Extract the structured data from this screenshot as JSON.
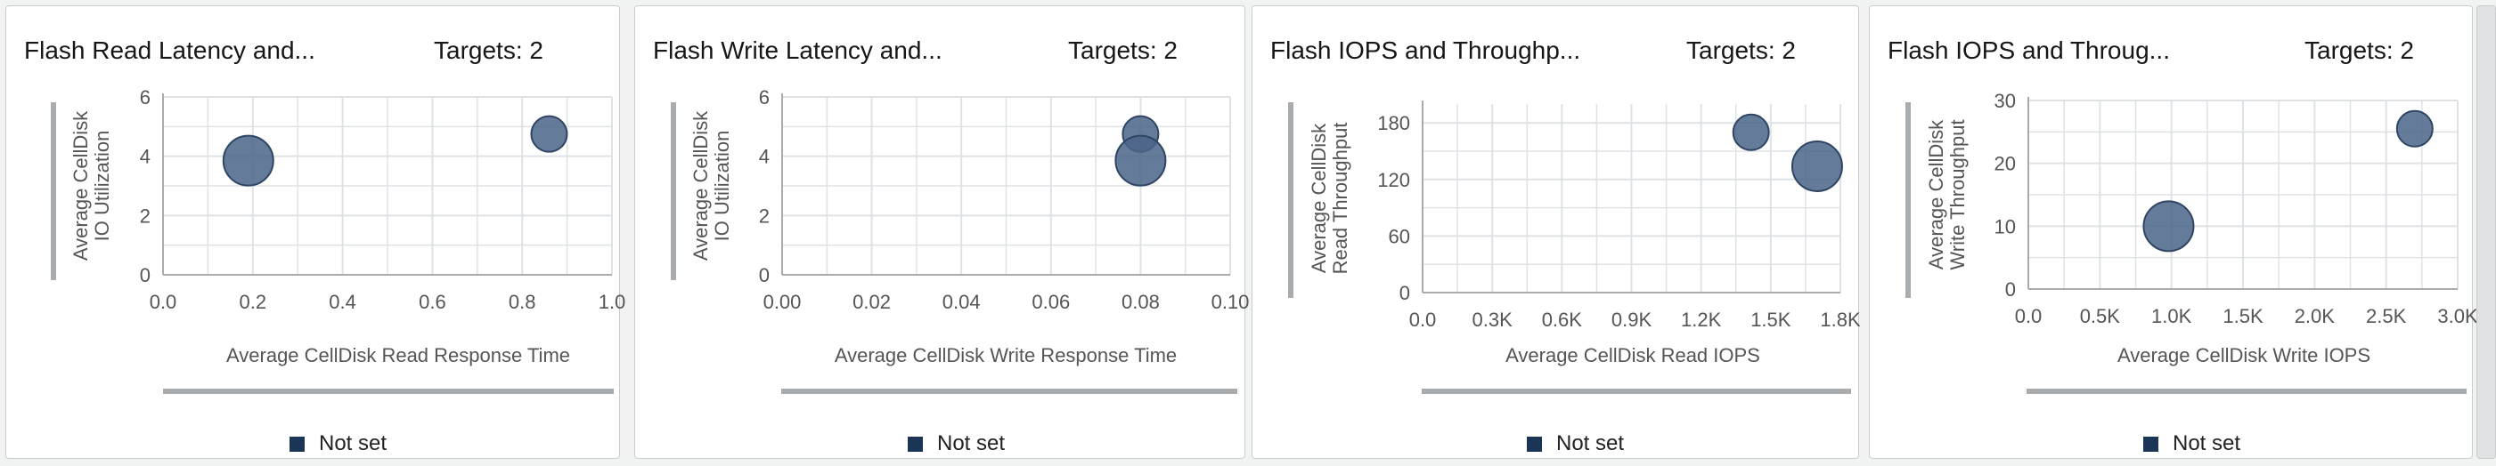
{
  "colors": {
    "bubble": "#4a6488",
    "bubble_stroke": "#2f4563",
    "legend": "#1b3556",
    "grid": "#dfe2e5",
    "axis": "#a8acaf"
  },
  "panels": [
    {
      "title": "Flash Read Latency and...",
      "targets": "Targets: 2",
      "legend_label": "Not set"
    },
    {
      "title": "Flash Write Latency and...",
      "targets": "Targets: 2",
      "legend_label": "Not set"
    },
    {
      "title": "Flash IOPS and Throughp...",
      "targets": "Targets: 2",
      "legend_label": "Not set"
    },
    {
      "title": "Flash IOPS and Throug...",
      "targets": "Targets: 2",
      "legend_label": "Not set"
    }
  ],
  "chart_data": [
    {
      "type": "scatter",
      "title": "Flash Read Latency and...",
      "xlabel": "Average CellDisk Read Response Time",
      "ylabel": [
        "Average CellDisk",
        "IO Utilization"
      ],
      "xlim": [
        0,
        1.0
      ],
      "ylim": [
        0,
        6
      ],
      "x_ticks": [
        0,
        0.2,
        0.4,
        0.6,
        0.8,
        1.0
      ],
      "x_tick_labels": [
        "0.0",
        "0.2",
        "0.4",
        "0.6",
        "0.8",
        "1.0"
      ],
      "y_ticks": [
        0,
        2,
        4,
        6
      ],
      "y_tick_labels": [
        "0",
        "2",
        "4",
        "6"
      ],
      "grid": true,
      "legend_position": "bottom",
      "series": [
        {
          "name": "Not set",
          "points": [
            {
              "x": 0.19,
              "y": 3.85,
              "size": 28
            },
            {
              "x": 0.86,
              "y": 4.75,
              "size": 20
            }
          ]
        }
      ]
    },
    {
      "type": "scatter",
      "title": "Flash Write Latency and...",
      "xlabel": "Average CellDisk Write Response Time",
      "ylabel": [
        "Average CellDisk",
        "IO Utilization"
      ],
      "xlim": [
        0,
        0.1
      ],
      "ylim": [
        0,
        6
      ],
      "x_ticks": [
        0,
        0.02,
        0.04,
        0.06,
        0.08,
        0.1
      ],
      "x_tick_labels": [
        "0.00",
        "0.02",
        "0.04",
        "0.06",
        "0.08",
        "0.10"
      ],
      "y_ticks": [
        0,
        2,
        4,
        6
      ],
      "y_tick_labels": [
        "0",
        "2",
        "4",
        "6"
      ],
      "grid": true,
      "legend_position": "bottom",
      "series": [
        {
          "name": "Not set",
          "points": [
            {
              "x": 0.08,
              "y": 4.75,
              "size": 20
            },
            {
              "x": 0.08,
              "y": 3.85,
              "size": 28
            }
          ]
        }
      ]
    },
    {
      "type": "scatter",
      "title": "Flash IOPS and Throughp...",
      "xlabel": "Average CellDisk Read IOPS",
      "ylabel": [
        "Average CellDisk",
        "Read Throughput"
      ],
      "xlim": [
        0,
        1800
      ],
      "ylim": [
        0,
        200
      ],
      "x_ticks": [
        0,
        300,
        600,
        900,
        1200,
        1500,
        1800
      ],
      "x_tick_labels": [
        "0.0",
        "0.3K",
        "0.6K",
        "0.9K",
        "1.2K",
        "1.5K",
        "1.8K"
      ],
      "y_ticks": [
        0,
        60,
        120,
        180
      ],
      "y_tick_labels": [
        "0",
        "60",
        "120",
        "180"
      ],
      "grid": true,
      "legend_position": "bottom",
      "series": [
        {
          "name": "Not set",
          "points": [
            {
              "x": 1415,
              "y": 170,
              "size": 20
            },
            {
              "x": 1700,
              "y": 134,
              "size": 28
            }
          ]
        }
      ]
    },
    {
      "type": "scatter",
      "title": "Flash IOPS and Throug...",
      "xlabel": "Average CellDisk Write IOPS",
      "ylabel": [
        "Average CellDisk",
        "Write Throughput"
      ],
      "xlim": [
        0,
        3000
      ],
      "ylim": [
        0,
        30
      ],
      "x_ticks": [
        0,
        500,
        1000,
        1500,
        2000,
        2500,
        3000
      ],
      "x_tick_labels": [
        "0.0",
        "0.5K",
        "1.0K",
        "1.5K",
        "2.0K",
        "2.5K",
        "3.0K"
      ],
      "y_ticks": [
        0,
        10,
        20,
        30
      ],
      "y_tick_labels": [
        "0",
        "10",
        "20",
        "30"
      ],
      "grid": true,
      "legend_position": "bottom",
      "series": [
        {
          "name": "Not set",
          "points": [
            {
              "x": 980,
              "y": 10,
              "size": 28
            },
            {
              "x": 2700,
              "y": 25.5,
              "size": 20
            }
          ]
        }
      ]
    }
  ]
}
